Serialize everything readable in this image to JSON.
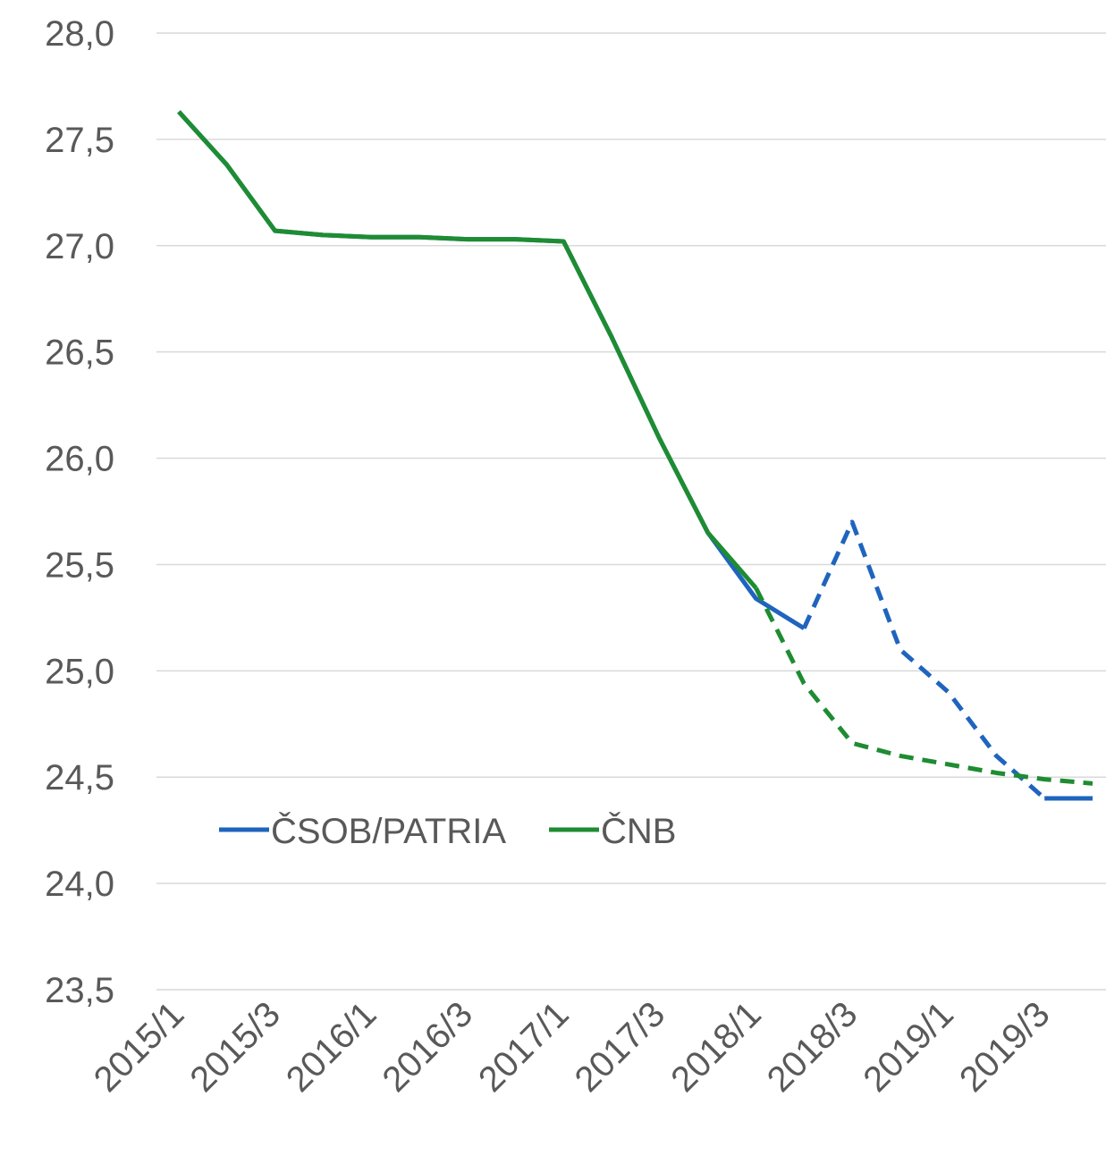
{
  "chart_data": {
    "type": "line",
    "categories": [
      "2015/1",
      null,
      "2015/3",
      null,
      "2016/1",
      null,
      "2016/3",
      null,
      "2017/1",
      null,
      "2017/3",
      null,
      "2018/1",
      null,
      "2018/3",
      null,
      "2019/1",
      null,
      "2019/3",
      null
    ],
    "series": [
      {
        "name": "ČSOB/PATRIA",
        "color": "#1f64be",
        "values": [
          27.63,
          27.38,
          27.07,
          27.05,
          27.04,
          27.04,
          27.03,
          27.03,
          27.02,
          26.57,
          26.09,
          25.65,
          25.34,
          25.2,
          25.7,
          25.1,
          24.9,
          24.6,
          24.4,
          24.4
        ],
        "dashed": [
          false,
          false,
          false,
          false,
          false,
          false,
          false,
          false,
          false,
          false,
          false,
          false,
          false,
          false,
          true,
          true,
          true,
          true,
          true,
          false
        ]
      },
      {
        "name": "ČNB",
        "color": "#1e8c32",
        "values": [
          27.63,
          27.38,
          27.07,
          27.05,
          27.04,
          27.04,
          27.03,
          27.03,
          27.02,
          26.57,
          26.09,
          25.65,
          25.39,
          24.94,
          24.66,
          24.6,
          24.56,
          24.52,
          24.49,
          24.47
        ],
        "dashed": [
          false,
          false,
          false,
          false,
          false,
          false,
          false,
          false,
          false,
          false,
          false,
          false,
          false,
          true,
          true,
          true,
          true,
          true,
          true,
          true
        ]
      }
    ],
    "ylim": [
      23.5,
      28.0
    ],
    "yticks": [
      {
        "value": 23.5,
        "label": "23,5"
      },
      {
        "value": 24.0,
        "label": "24,0"
      },
      {
        "value": 24.5,
        "label": "24,5"
      },
      {
        "value": 25.0,
        "label": "25,0"
      },
      {
        "value": 25.5,
        "label": "25,5"
      },
      {
        "value": 26.0,
        "label": "26,0"
      },
      {
        "value": 26.5,
        "label": "26,5"
      },
      {
        "value": 27.0,
        "label": "27,0"
      },
      {
        "value": 27.5,
        "label": "27,5"
      },
      {
        "value": 28.0,
        "label": "28,0"
      }
    ],
    "grid": true,
    "legend": "center-left"
  }
}
